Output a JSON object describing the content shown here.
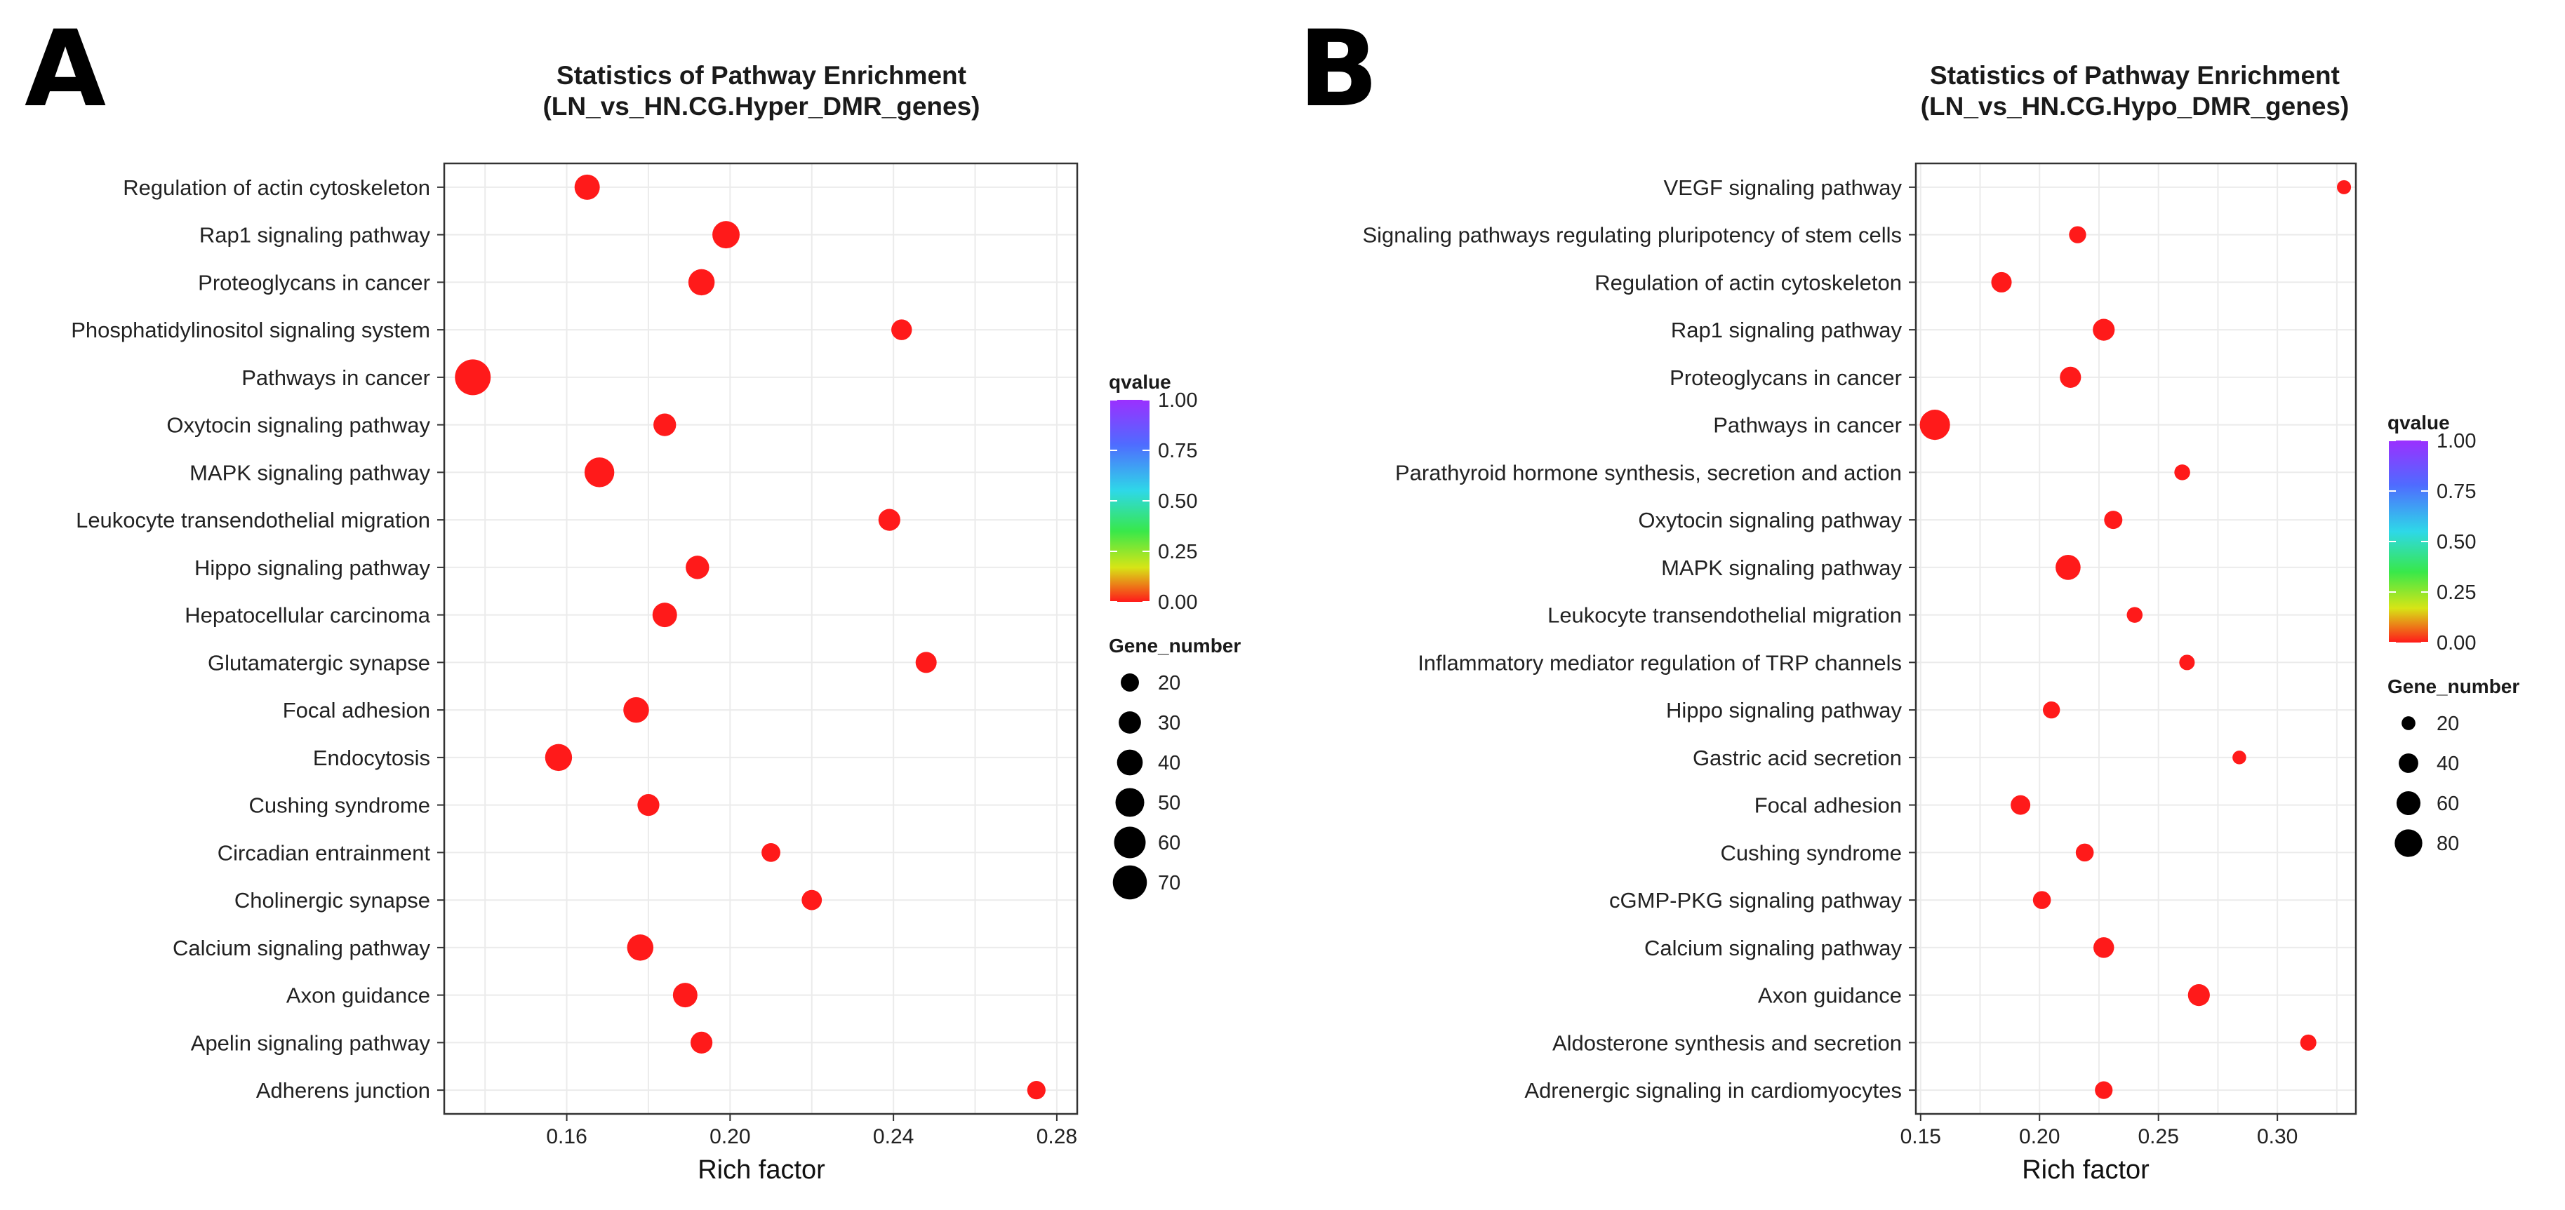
{
  "chart_data": [
    {
      "panel": "A",
      "type": "scatter",
      "title": "Statistics of Pathway Enrichment",
      "subtitle": "(LN_vs_HN.CG.Hyper_DMR_genes)",
      "xlabel": "Rich factor",
      "ylabel": "",
      "xlim": [
        0.13,
        0.285
      ],
      "xticks": [
        0.16,
        0.2,
        0.24,
        0.28
      ],
      "xtick_labels": [
        "0.16",
        "0.20",
        "0.24",
        "0.28"
      ],
      "grid": true,
      "color_legend": {
        "title": "qvalue",
        "ticks": [
          "1.00",
          "0.75",
          "0.50",
          "0.25",
          "0.00"
        ],
        "values": [
          1.0,
          0.75,
          0.5,
          0.25,
          0.0
        ]
      },
      "size_legend": {
        "title": "Gene_number",
        "values": [
          20,
          30,
          40,
          50,
          60,
          70
        ],
        "labels": [
          "20",
          "30",
          "40",
          "50",
          "60",
          "70"
        ]
      },
      "points": [
        {
          "pathway": "Regulation of actin cytoskeleton",
          "rich_factor": 0.165,
          "gene_number": 36,
          "qvalue": 0.0
        },
        {
          "pathway": "Rap1 signaling pathway",
          "rich_factor": 0.199,
          "gene_number": 42,
          "qvalue": 0.0
        },
        {
          "pathway": "Proteoglycans in cancer",
          "rich_factor": 0.193,
          "gene_number": 39,
          "qvalue": 0.0
        },
        {
          "pathway": "Phosphatidylinositol signaling system",
          "rich_factor": 0.242,
          "gene_number": 24,
          "qvalue": 0.0
        },
        {
          "pathway": "Pathways in cancer",
          "rich_factor": 0.137,
          "gene_number": 72,
          "qvalue": 0.0
        },
        {
          "pathway": "Oxytocin signaling pathway",
          "rich_factor": 0.184,
          "gene_number": 29,
          "qvalue": 0.0
        },
        {
          "pathway": "MAPK signaling pathway",
          "rich_factor": 0.168,
          "gene_number": 50,
          "qvalue": 0.0
        },
        {
          "pathway": "Leukocyte transendothelial migration",
          "rich_factor": 0.239,
          "gene_number": 27,
          "qvalue": 0.0
        },
        {
          "pathway": "Hippo signaling pathway",
          "rich_factor": 0.192,
          "gene_number": 31,
          "qvalue": 0.0
        },
        {
          "pathway": "Hepatocellular carcinoma",
          "rich_factor": 0.184,
          "gene_number": 34,
          "qvalue": 0.0
        },
        {
          "pathway": "Glutamatergic synapse",
          "rich_factor": 0.248,
          "gene_number": 25,
          "qvalue": 0.0
        },
        {
          "pathway": "Focal adhesion",
          "rich_factor": 0.177,
          "gene_number": 37,
          "qvalue": 0.0
        },
        {
          "pathway": "Endocytosis",
          "rich_factor": 0.158,
          "gene_number": 41,
          "qvalue": 0.0
        },
        {
          "pathway": "Cushing syndrome",
          "rich_factor": 0.18,
          "gene_number": 27,
          "qvalue": 0.0
        },
        {
          "pathway": "Circadian entrainment",
          "rich_factor": 0.21,
          "gene_number": 20,
          "qvalue": 0.0
        },
        {
          "pathway": "Cholinergic synapse",
          "rich_factor": 0.22,
          "gene_number": 23,
          "qvalue": 0.0
        },
        {
          "pathway": "Calcium signaling pathway",
          "rich_factor": 0.178,
          "gene_number": 39,
          "qvalue": 0.0
        },
        {
          "pathway": "Axon guidance",
          "rich_factor": 0.189,
          "gene_number": 34,
          "qvalue": 0.0
        },
        {
          "pathway": "Apelin signaling pathway",
          "rich_factor": 0.193,
          "gene_number": 27,
          "qvalue": 0.0
        },
        {
          "pathway": "Adherens junction",
          "rich_factor": 0.275,
          "gene_number": 19,
          "qvalue": 0.0
        }
      ]
    },
    {
      "panel": "B",
      "type": "scatter",
      "title": "Statistics of Pathway Enrichment",
      "subtitle": "(LN_vs_HN.CG.Hypo_DMR_genes)",
      "xlabel": "Rich factor",
      "ylabel": "",
      "xlim": [
        0.148,
        0.333
      ],
      "xticks": [
        0.15,
        0.2,
        0.25,
        0.3
      ],
      "xtick_labels": [
        "0.15",
        "0.20",
        "0.25",
        "0.30"
      ],
      "grid": true,
      "color_legend": {
        "title": "qvalue",
        "ticks": [
          "1.00",
          "0.75",
          "0.50",
          "0.25",
          "0.00"
        ],
        "values": [
          1.0,
          0.75,
          0.5,
          0.25,
          0.0
        ]
      },
      "size_legend": {
        "title": "Gene_number",
        "values": [
          20,
          40,
          60,
          80
        ],
        "labels": [
          "20",
          "40",
          "60",
          "80"
        ]
      },
      "points": [
        {
          "pathway": "VEGF signaling pathway",
          "rich_factor": 0.328,
          "gene_number": 19,
          "qvalue": 0.0
        },
        {
          "pathway": "Signaling pathways regulating pluripotency of stem cells",
          "rich_factor": 0.216,
          "gene_number": 28,
          "qvalue": 0.0
        },
        {
          "pathway": "Regulation of actin cytoskeleton",
          "rich_factor": 0.184,
          "gene_number": 40,
          "qvalue": 0.0
        },
        {
          "pathway": "Rap1 signaling pathway",
          "rich_factor": 0.227,
          "gene_number": 46,
          "qvalue": 0.0
        },
        {
          "pathway": "Proteoglycans in cancer",
          "rich_factor": 0.213,
          "gene_number": 43,
          "qvalue": 0.0
        },
        {
          "pathway": "Pathways in cancer",
          "rich_factor": 0.156,
          "gene_number": 88,
          "qvalue": 0.0
        },
        {
          "pathway": "Parathyroid hormone synthesis, secretion and action",
          "rich_factor": 0.26,
          "gene_number": 24,
          "qvalue": 0.0
        },
        {
          "pathway": "Oxytocin signaling pathway",
          "rich_factor": 0.231,
          "gene_number": 32,
          "qvalue": 0.0
        },
        {
          "pathway": "MAPK signaling pathway",
          "rich_factor": 0.212,
          "gene_number": 60,
          "qvalue": 0.0
        },
        {
          "pathway": "Leukocyte transendothelial migration",
          "rich_factor": 0.24,
          "gene_number": 24,
          "qvalue": 0.0
        },
        {
          "pathway": "Inflammatory mediator regulation of TRP channels",
          "rich_factor": 0.262,
          "gene_number": 23,
          "qvalue": 0.0
        },
        {
          "pathway": "Hippo signaling pathway",
          "rich_factor": 0.205,
          "gene_number": 28,
          "qvalue": 0.0
        },
        {
          "pathway": "Gastric acid secretion",
          "rich_factor": 0.284,
          "gene_number": 18,
          "qvalue": 0.0
        },
        {
          "pathway": "Focal adhesion",
          "rich_factor": 0.192,
          "gene_number": 37,
          "qvalue": 0.0
        },
        {
          "pathway": "Cushing syndrome",
          "rich_factor": 0.219,
          "gene_number": 31,
          "qvalue": 0.0
        },
        {
          "pathway": "cGMP-PKG signaling pathway",
          "rich_factor": 0.201,
          "gene_number": 31,
          "qvalue": 0.0
        },
        {
          "pathway": "Calcium signaling pathway",
          "rich_factor": 0.227,
          "gene_number": 41,
          "qvalue": 0.0
        },
        {
          "pathway": "Axon guidance",
          "rich_factor": 0.267,
          "gene_number": 46,
          "qvalue": 0.0
        },
        {
          "pathway": "Aldosterone synthesis and secretion",
          "rich_factor": 0.313,
          "gene_number": 25,
          "qvalue": 0.0
        },
        {
          "pathway": "Adrenergic signaling in cardiomyocytes",
          "rich_factor": 0.227,
          "gene_number": 30,
          "qvalue": 0.0
        }
      ]
    }
  ],
  "colors": {
    "point": "#ff1a1a",
    "gradient": [
      "#9b30ff",
      "#4f6bff",
      "#2ed8e8",
      "#38e84a",
      "#d7e516",
      "#ff1a1a"
    ],
    "grid": "#ebebeb",
    "axis_frame": "#333333",
    "legend_mark": "#000000"
  }
}
